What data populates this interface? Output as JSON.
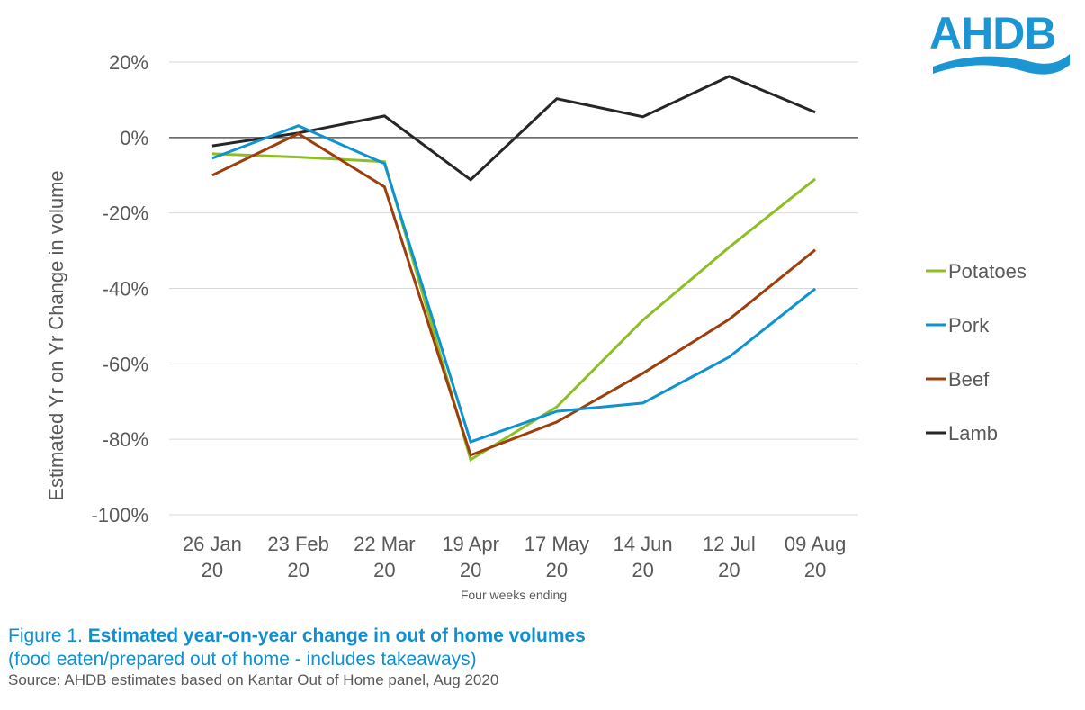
{
  "logo": {
    "text": "AHDB",
    "color": "#1b96d3"
  },
  "caption": {
    "figure_label": "Figure 1.",
    "title": "Estimated year-on-year change in out of home volumes",
    "subtitle": "(food eaten/prepared out of home - includes takeaways)",
    "source": "Source: AHDB estimates based on Kantar Out of Home panel, Aug 2020"
  },
  "chart_data": {
    "type": "line",
    "title": "Estimated year-on-year change in out of home volumes",
    "xlabel": "Four weeks ending",
    "ylabel": "Estimated Yr on Yr Change in volume",
    "categories": [
      [
        "26 Jan",
        "20"
      ],
      [
        "23 Feb",
        "20"
      ],
      [
        "22 Mar",
        "20"
      ],
      [
        "19 Apr",
        "20"
      ],
      [
        "17 May",
        "20"
      ],
      [
        "14 Jun",
        "20"
      ],
      [
        "12 Jul",
        "20"
      ],
      [
        "09 Aug",
        "20"
      ]
    ],
    "ylim": [
      -100,
      20
    ],
    "yticks": [
      20,
      0,
      -20,
      -40,
      -60,
      -80,
      -100
    ],
    "ytick_labels": [
      "20%",
      "0%",
      "-20%",
      "-40%",
      "-60%",
      "-80%",
      "-100%"
    ],
    "grid": true,
    "legend_position": "right",
    "series": [
      {
        "name": "Potatoes",
        "color": "#8dbf25",
        "values": [
          -4.3,
          -5.2,
          -6.4,
          -85.4,
          -71.4,
          -48.4,
          -29.1,
          -11.0
        ]
      },
      {
        "name": "Pork",
        "color": "#0e92d0",
        "values": [
          -5.5,
          3.1,
          -6.9,
          -80.7,
          -72.6,
          -70.4,
          -58.2,
          -40.1
        ]
      },
      {
        "name": "Beef",
        "color": "#9c3f0c",
        "values": [
          -10.0,
          1.0,
          -13.1,
          -84.2,
          -75.4,
          -62.5,
          -48.2,
          -29.8
        ]
      },
      {
        "name": "Lamb",
        "color": "#262626",
        "values": [
          -2.2,
          1.2,
          5.7,
          -11.2,
          10.3,
          5.5,
          16.2,
          6.7
        ]
      }
    ]
  }
}
